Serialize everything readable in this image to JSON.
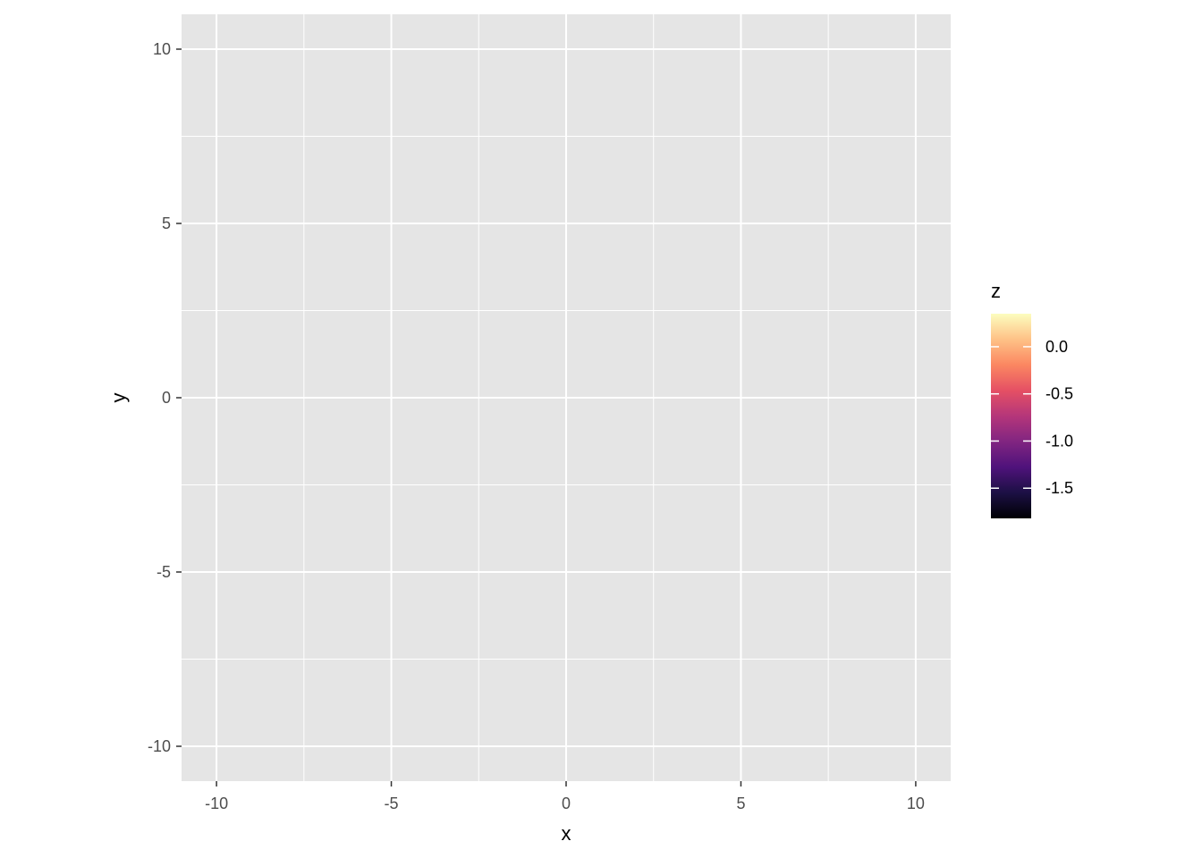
{
  "chart_data": {
    "type": "heatmap",
    "title": "",
    "xlabel": "x",
    "ylabel": "y",
    "xlim": [
      -11,
      11
    ],
    "ylim": [
      -11,
      11
    ],
    "data_extent": {
      "x": [
        -10,
        10
      ],
      "y": [
        -10,
        10
      ]
    },
    "x_ticks": [
      {
        "value": -10,
        "label": "-10"
      },
      {
        "value": -5,
        "label": "-5"
      },
      {
        "value": 0,
        "label": "0"
      },
      {
        "value": 5,
        "label": "5"
      },
      {
        "value": 10,
        "label": "10"
      }
    ],
    "y_ticks": [
      {
        "value": -10,
        "label": "-10"
      },
      {
        "value": -5,
        "label": "-5"
      },
      {
        "value": 0,
        "label": "0"
      },
      {
        "value": 5,
        "label": "5"
      },
      {
        "value": 10,
        "label": "10"
      }
    ],
    "grid": true,
    "panel_background": "#e5e5e5",
    "grid_color": "#ffffff",
    "grid_resolution": 160,
    "fill_variable": "z",
    "z_range": [
      -1.82,
      0.35
    ],
    "colorbar": {
      "title": "z",
      "placement": "right",
      "palette": "magma",
      "ticks": [
        {
          "value": 0.0,
          "label": "0.0"
        },
        {
          "value": -0.5,
          "label": "-0.5"
        },
        {
          "value": -1.0,
          "label": "-1.0"
        },
        {
          "value": -1.5,
          "label": "-1.5"
        }
      ]
    },
    "colors": [
      "#000004",
      "#1c1044",
      "#4f127b",
      "#812581",
      "#b5367a",
      "#e55064",
      "#fb8761",
      "#fec287",
      "#fcfdbf"
    ]
  }
}
